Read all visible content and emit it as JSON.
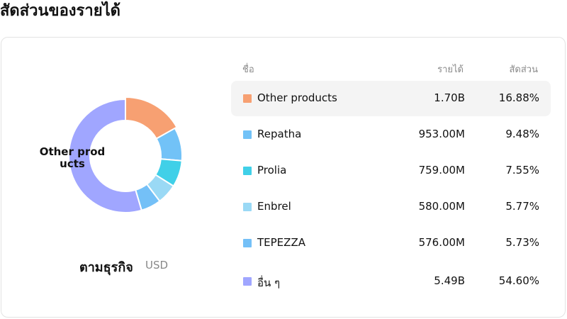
{
  "page_title": "สัดส่วนของรายได้",
  "center_label": "Other products",
  "breakdown": {
    "label": "ตามธุรกิจ",
    "unit": "USD"
  },
  "table": {
    "headers": {
      "name": "ชื่อ",
      "revenue": "รายได้",
      "share": "สัดส่วน"
    },
    "rows": [
      {
        "name": "Other products",
        "revenue": "1.70B",
        "share": "16.88%",
        "color": "#F7A072",
        "active": true
      },
      {
        "name": "Repatha",
        "revenue": "953.00M",
        "share": "9.48%",
        "color": "#72C2F7",
        "active": false
      },
      {
        "name": "Prolia",
        "revenue": "759.00M",
        "share": "7.55%",
        "color": "#40D0E8",
        "active": false
      },
      {
        "name": "Enbrel",
        "revenue": "580.00M",
        "share": "5.77%",
        "color": "#9AD9F5",
        "active": false
      },
      {
        "name": "TEPEZZA",
        "revenue": "576.00M",
        "share": "5.73%",
        "color": "#74C0F7",
        "active": false
      },
      {
        "name": "อื่น ๆ",
        "revenue": "5.49B",
        "share": "54.60%",
        "color": "#A0A6FF",
        "active": false
      }
    ]
  },
  "chart_data": {
    "type": "pie",
    "donut": true,
    "categories": [
      "Other products",
      "Repatha",
      "Prolia",
      "Enbrel",
      "TEPEZZA",
      "อื่น ๆ"
    ],
    "values": [
      16.88,
      9.48,
      7.55,
      5.77,
      5.73,
      54.6
    ],
    "colors": [
      "#F7A072",
      "#72C2F7",
      "#40D0E8",
      "#9AD9F5",
      "#74C0F7",
      "#A0A6FF"
    ],
    "highlighted": "Other products"
  }
}
